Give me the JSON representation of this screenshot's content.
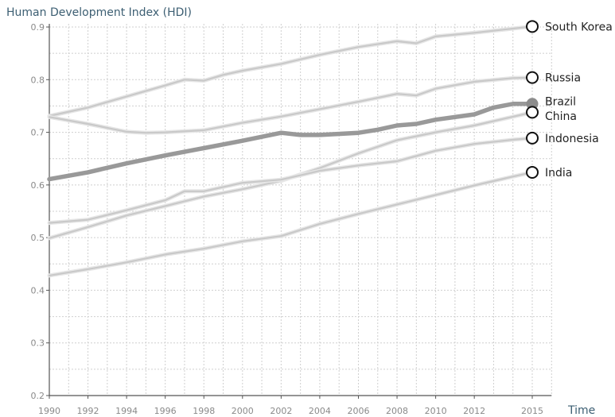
{
  "chart_data": {
    "type": "line",
    "ylabel": "Human Development Index (HDI)",
    "xlabel": "Time",
    "xlim": [
      1990,
      2016
    ],
    "ylim": [
      0.2,
      0.9
    ],
    "x_ticks": [
      1990,
      1992,
      1994,
      1996,
      1998,
      2000,
      2002,
      2004,
      2006,
      2008,
      2010,
      2012,
      2015
    ],
    "y_ticks": [
      0.2,
      0.3,
      0.4,
      0.5,
      0.6,
      0.7,
      0.8,
      0.9
    ],
    "y_tick_labels": [
      "0.2",
      "0.3",
      "0.4",
      "0.5",
      "0.6",
      "0.7",
      "0.8",
      "0.9"
    ],
    "grid": true,
    "legend": "end-of-line labels",
    "colors": {
      "light_line": "#c9c9c9",
      "dark_line": "#999999",
      "marker_fill": "#ffffff",
      "marker_stroke": "#111111",
      "highlight_marker": "#8c8c8c"
    },
    "series": [
      {
        "name": "South Korea",
        "highlight": false,
        "x": [
          1990,
          1992,
          1994,
          1996,
          1997,
          1998,
          1999,
          2000,
          2002,
          2004,
          2006,
          2008,
          2009,
          2010,
          2012,
          2014,
          2015
        ],
        "y": [
          0.731,
          0.747,
          0.768,
          0.789,
          0.8,
          0.798,
          0.809,
          0.817,
          0.83,
          0.847,
          0.862,
          0.873,
          0.869,
          0.882,
          0.889,
          0.897,
          0.901
        ]
      },
      {
        "name": "Russia",
        "highlight": false,
        "x": [
          1990,
          1992,
          1994,
          1995,
          1996,
          1998,
          2000,
          2002,
          2004,
          2006,
          2008,
          2009,
          2010,
          2012,
          2014,
          2015
        ],
        "y": [
          0.729,
          0.716,
          0.701,
          0.699,
          0.7,
          0.704,
          0.718,
          0.73,
          0.744,
          0.758,
          0.773,
          0.77,
          0.783,
          0.796,
          0.803,
          0.804
        ]
      },
      {
        "name": "Brazil",
        "highlight": true,
        "x": [
          1990,
          1992,
          1994,
          1996,
          1998,
          2000,
          2002,
          2003,
          2004,
          2006,
          2007,
          2008,
          2009,
          2010,
          2012,
          2013,
          2014,
          2015
        ],
        "y": [
          0.611,
          0.624,
          0.641,
          0.656,
          0.67,
          0.684,
          0.699,
          0.695,
          0.695,
          0.699,
          0.705,
          0.713,
          0.716,
          0.724,
          0.734,
          0.747,
          0.754,
          0.754
        ]
      },
      {
        "name": "China",
        "highlight": false,
        "x": [
          1990,
          1992,
          1994,
          1996,
          1998,
          2000,
          2002,
          2004,
          2006,
          2008,
          2010,
          2012,
          2015
        ],
        "y": [
          0.499,
          0.52,
          0.542,
          0.56,
          0.578,
          0.592,
          0.608,
          0.632,
          0.66,
          0.685,
          0.7,
          0.713,
          0.738
        ]
      },
      {
        "name": "Indonesia",
        "highlight": false,
        "x": [
          1990,
          1992,
          1994,
          1996,
          1997,
          1998,
          2000,
          2002,
          2004,
          2006,
          2008,
          2010,
          2012,
          2014,
          2015
        ],
        "y": [
          0.528,
          0.534,
          0.552,
          0.571,
          0.588,
          0.588,
          0.604,
          0.61,
          0.627,
          0.637,
          0.645,
          0.665,
          0.678,
          0.686,
          0.689
        ]
      },
      {
        "name": "India",
        "highlight": false,
        "x": [
          1990,
          1992,
          1994,
          1996,
          1998,
          2000,
          2002,
          2004,
          2006,
          2008,
          2010,
          2012,
          2014,
          2015
        ],
        "y": [
          0.428,
          0.44,
          0.453,
          0.468,
          0.479,
          0.493,
          0.503,
          0.526,
          0.545,
          0.563,
          0.581,
          0.599,
          0.616,
          0.624
        ]
      }
    ]
  }
}
